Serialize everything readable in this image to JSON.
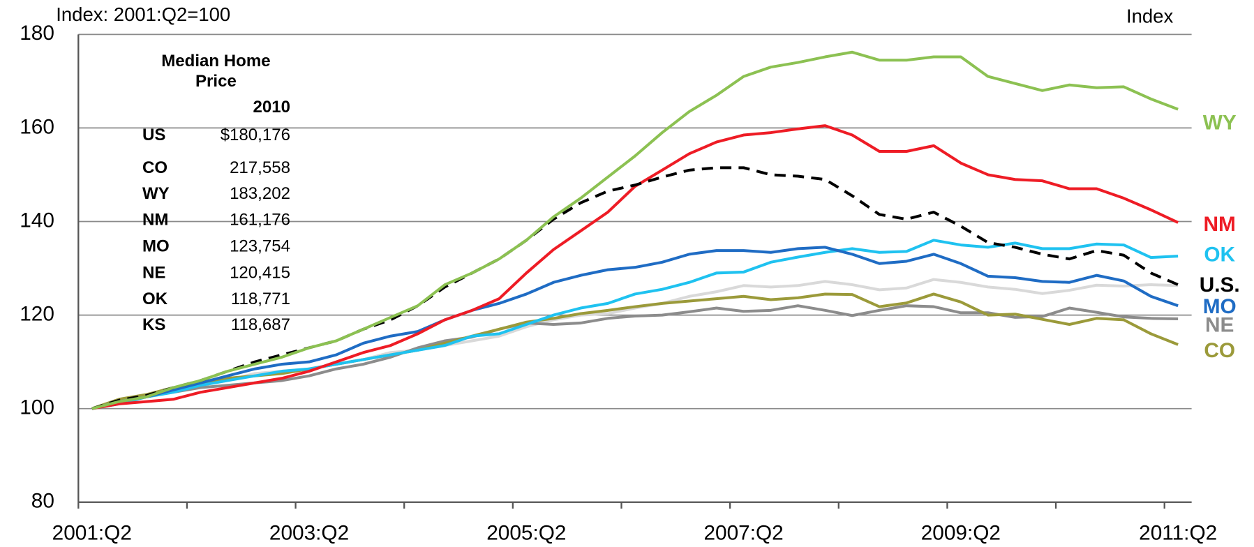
{
  "chart_data": {
    "type": "line",
    "y_label": "Index: 2001:Q2=100",
    "y_unit_label": "Index",
    "categories": [
      "2001:Q2",
      null,
      null,
      null,
      null,
      null,
      null,
      null,
      "2003:Q2",
      null,
      null,
      null,
      null,
      null,
      null,
      null,
      "2005:Q2",
      null,
      null,
      null,
      null,
      null,
      null,
      null,
      "2007:Q2",
      null,
      null,
      null,
      null,
      null,
      null,
      null,
      "2009:Q2",
      null,
      null,
      null,
      null,
      null,
      null,
      null,
      "2011:Q2"
    ],
    "ylim": [
      80,
      180
    ],
    "yticks": [
      80,
      100,
      120,
      140,
      160,
      180
    ],
    "grid": true,
    "series": [
      {
        "color": "#d9d9d9",
        "values": [
          100,
          101.5,
          102.5,
          104,
          105,
          106,
          107.5,
          108,
          108.5,
          109.5,
          110.5,
          112,
          112.5,
          113.5,
          114.5,
          115.5,
          117.5,
          119,
          120,
          120.3,
          121.5,
          122.5,
          124,
          125,
          126.3,
          126,
          126.3,
          127.2,
          126.5,
          125.4,
          125.8,
          127.6,
          127,
          126,
          125.5,
          124.6,
          125.3,
          126.4,
          126.2,
          126.5,
          126.3
        ]
      },
      {
        "name": "NE",
        "color": "#8c8c8c",
        "values": [
          100,
          101.5,
          102.5,
          103.5,
          104.5,
          105,
          105.5,
          106,
          107,
          108.5,
          109.5,
          111,
          113,
          114.5,
          115.3,
          117,
          118.3,
          118,
          118.3,
          119.3,
          119.8,
          120,
          120.7,
          121.5,
          120.8,
          121,
          122,
          121,
          119.9,
          121,
          122,
          121.8,
          120.5,
          120.5,
          119.5,
          119.7,
          121.5,
          120.6,
          119.6,
          119.3,
          119.2
        ]
      },
      {
        "name": "CO",
        "color": "#9b9a3a",
        "values": [
          100,
          102,
          103,
          104.5,
          105.5,
          106.5,
          107,
          107.5,
          108.5,
          109.5,
          110.5,
          111.5,
          112.5,
          114,
          115.5,
          117,
          118.5,
          119.3,
          120.3,
          121,
          121.8,
          122.5,
          123,
          123.5,
          124,
          123.3,
          123.7,
          124.5,
          124.4,
          121.8,
          122.6,
          124.5,
          122.8,
          120,
          120.2,
          119.1,
          118,
          119.3,
          119,
          116,
          113.7
        ]
      },
      {
        "name": "OK",
        "color": "#1fc2f0",
        "values": [
          100,
          101,
          102.5,
          103.5,
          105,
          106,
          107,
          108,
          108.5,
          109.5,
          110.5,
          111.5,
          112.5,
          113.5,
          115.5,
          116,
          118,
          120,
          121.5,
          122.5,
          124.5,
          125.5,
          127,
          129,
          129.2,
          131.3,
          132.4,
          133.4,
          134.2,
          133.4,
          133.6,
          136,
          135,
          134.5,
          135.4,
          134.2,
          134.2,
          135.2,
          135,
          132.3,
          132.6
        ]
      },
      {
        "name": "MO",
        "color": "#1f6cc4",
        "values": [
          100,
          101.5,
          102.5,
          104,
          105.5,
          107,
          108.5,
          109.5,
          110,
          111.5,
          114,
          115.5,
          116.5,
          119,
          121,
          122.5,
          124.5,
          127,
          128.5,
          129.7,
          130.2,
          131.3,
          133,
          133.8,
          133.8,
          133.4,
          134.2,
          134.5,
          133,
          131,
          131.5,
          133,
          131,
          128.3,
          128,
          127.2,
          127,
          128.5,
          127.3,
          124,
          122
        ]
      },
      {
        "name": "NM",
        "color": "#ee1c25",
        "values": [
          100,
          101,
          101.5,
          102,
          103.5,
          104.5,
          105.5,
          106.5,
          108,
          110,
          112,
          113.5,
          116,
          119,
          121,
          123.5,
          129,
          134,
          138,
          142,
          147.5,
          151,
          154.5,
          157,
          158.5,
          159,
          159.8,
          160.5,
          158.5,
          155,
          155,
          156.2,
          152.5,
          150,
          149,
          148.7,
          147,
          147,
          145,
          142.5,
          139.8
        ]
      },
      {
        "name": "U.S.",
        "color": "#000000",
        "dashed": true,
        "values": [
          100,
          101.8,
          102.8,
          104.5,
          106,
          108,
          110,
          111.5,
          113,
          114.5,
          117,
          119,
          122,
          126,
          129,
          132,
          136,
          140.5,
          144,
          146.5,
          147.8,
          149.5,
          151,
          151.5,
          151.5,
          150,
          149.7,
          149,
          145.5,
          141.5,
          140.5,
          142,
          139,
          135.5,
          134.5,
          133,
          132,
          133.8,
          132.8,
          129,
          126.5
        ]
      },
      {
        "name": "WY",
        "color": "#8cc152",
        "values": [
          100,
          101.5,
          102.5,
          104.5,
          106,
          108,
          109.5,
          111,
          113,
          114.5,
          117,
          119.5,
          122,
          126.5,
          129,
          132,
          136,
          141,
          145,
          149.5,
          154,
          159,
          163.5,
          167,
          171,
          173,
          174,
          175.2,
          176.2,
          174.5,
          174.5,
          175.2,
          175.2,
          171,
          169.5,
          168,
          169.2,
          168.6,
          168.8,
          166.2,
          164
        ]
      }
    ]
  },
  "inset_table": {
    "title": "Median Home Price",
    "column_header": "2010",
    "rows": [
      [
        "US",
        "$180,176"
      ],
      [
        "CO",
        "217,558"
      ],
      [
        "WY",
        "183,202"
      ],
      [
        "NM",
        "161,176"
      ],
      [
        "MO",
        "123,754"
      ],
      [
        "NE",
        "120,415"
      ],
      [
        "OK",
        "118,771"
      ],
      [
        "KS",
        "118,687"
      ]
    ]
  }
}
